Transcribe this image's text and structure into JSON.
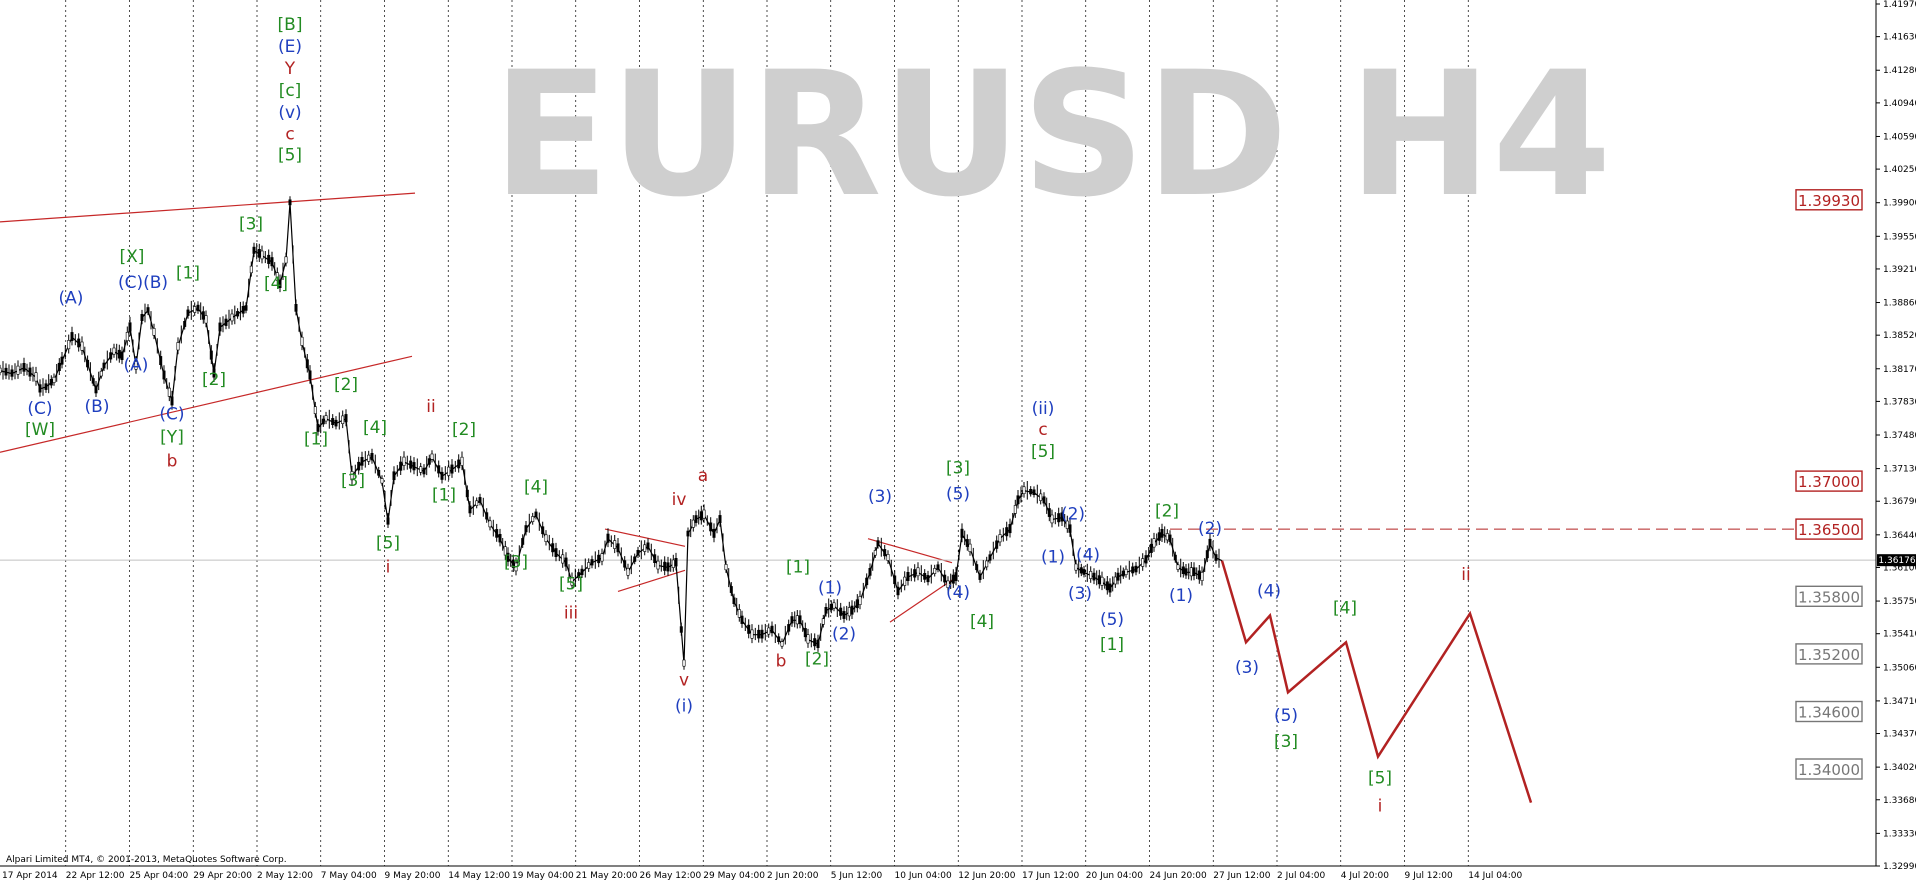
{
  "chart_data": {
    "type": "candlestick",
    "title": "EURUSD H4",
    "copyright": "Alpari Limited MT4, © 2001-2013, MetaQuotes Software Corp.",
    "current_price": 1.36176,
    "ylim": [
      1.3299,
      1.4197
    ],
    "y_ticks": [
      1.4197,
      1.4163,
      1.4128,
      1.4094,
      1.4059,
      1.4025,
      1.399,
      1.3955,
      1.3921,
      1.3886,
      1.3852,
      1.3817,
      1.3783,
      1.3748,
      1.3713,
      1.3679,
      1.3644,
      1.361,
      1.3575,
      1.3541,
      1.3506,
      1.3471,
      1.3437,
      1.3402,
      1.3368,
      1.3333,
      1.3299
    ],
    "x_labels": [
      "17 Apr 2014",
      "22 Apr 12:00",
      "25 Apr 04:00",
      "29 Apr 20:00",
      "2 May 12:00",
      "7 May 04:00",
      "9 May 20:00",
      "14 May 12:00",
      "19 May 04:00",
      "21 May 20:00",
      "26 May 12:00",
      "29 May 04:00",
      "2 Jun 20:00",
      "5 Jun 12:00",
      "10 Jun 04:00",
      "12 Jun 20:00",
      "17 Jun 12:00",
      "20 Jun 04:00",
      "24 Jun 20:00",
      "27 Jun 12:00",
      "2 Jul 04:00",
      "4 Jul 20:00",
      "9 Jul 12:00",
      "14 Jul 04:00"
    ],
    "price_path": [
      {
        "x": 0,
        "y": 1.3815
      },
      {
        "x": 12,
        "y": 1.3812
      },
      {
        "x": 24,
        "y": 1.3818
      },
      {
        "x": 36,
        "y": 1.3808
      },
      {
        "x": 40,
        "y": 1.3796
      },
      {
        "x": 46,
        "y": 1.3798
      },
      {
        "x": 54,
        "y": 1.3805
      },
      {
        "x": 62,
        "y": 1.3825
      },
      {
        "x": 72,
        "y": 1.385
      },
      {
        "x": 82,
        "y": 1.384
      },
      {
        "x": 96,
        "y": 1.3795
      },
      {
        "x": 104,
        "y": 1.382
      },
      {
        "x": 114,
        "y": 1.3835
      },
      {
        "x": 122,
        "y": 1.383
      },
      {
        "x": 130,
        "y": 1.386
      },
      {
        "x": 136,
        "y": 1.382
      },
      {
        "x": 142,
        "y": 1.387
      },
      {
        "x": 148,
        "y": 1.3878
      },
      {
        "x": 154,
        "y": 1.3855
      },
      {
        "x": 164,
        "y": 1.381
      },
      {
        "x": 172,
        "y": 1.3783
      },
      {
        "x": 178,
        "y": 1.384
      },
      {
        "x": 188,
        "y": 1.3875
      },
      {
        "x": 198,
        "y": 1.388
      },
      {
        "x": 206,
        "y": 1.3868
      },
      {
        "x": 214,
        "y": 1.3812
      },
      {
        "x": 220,
        "y": 1.386
      },
      {
        "x": 232,
        "y": 1.387
      },
      {
        "x": 246,
        "y": 1.388
      },
      {
        "x": 254,
        "y": 1.394
      },
      {
        "x": 262,
        "y": 1.3935
      },
      {
        "x": 272,
        "y": 1.3928
      },
      {
        "x": 280,
        "y": 1.3905
      },
      {
        "x": 286,
        "y": 1.393
      },
      {
        "x": 290,
        "y": 1.399
      },
      {
        "x": 296,
        "y": 1.388
      },
      {
        "x": 302,
        "y": 1.3845
      },
      {
        "x": 310,
        "y": 1.381
      },
      {
        "x": 318,
        "y": 1.3755
      },
      {
        "x": 326,
        "y": 1.3765
      },
      {
        "x": 336,
        "y": 1.376
      },
      {
        "x": 346,
        "y": 1.3765
      },
      {
        "x": 352,
        "y": 1.3705
      },
      {
        "x": 362,
        "y": 1.372
      },
      {
        "x": 372,
        "y": 1.3725
      },
      {
        "x": 382,
        "y": 1.37
      },
      {
        "x": 388,
        "y": 1.3658
      },
      {
        "x": 394,
        "y": 1.3705
      },
      {
        "x": 404,
        "y": 1.372
      },
      {
        "x": 414,
        "y": 1.3715
      },
      {
        "x": 424,
        "y": 1.371
      },
      {
        "x": 432,
        "y": 1.3725
      },
      {
        "x": 442,
        "y": 1.3705
      },
      {
        "x": 452,
        "y": 1.3712
      },
      {
        "x": 462,
        "y": 1.372
      },
      {
        "x": 470,
        "y": 1.367
      },
      {
        "x": 480,
        "y": 1.368
      },
      {
        "x": 490,
        "y": 1.3655
      },
      {
        "x": 500,
        "y": 1.364
      },
      {
        "x": 508,
        "y": 1.362
      },
      {
        "x": 516,
        "y": 1.361
      },
      {
        "x": 526,
        "y": 1.365
      },
      {
        "x": 536,
        "y": 1.3665
      },
      {
        "x": 546,
        "y": 1.364
      },
      {
        "x": 556,
        "y": 1.3625
      },
      {
        "x": 566,
        "y": 1.3615
      },
      {
        "x": 572,
        "y": 1.3595
      },
      {
        "x": 582,
        "y": 1.3605
      },
      {
        "x": 592,
        "y": 1.3615
      },
      {
        "x": 602,
        "y": 1.362
      },
      {
        "x": 608,
        "y": 1.364
      },
      {
        "x": 618,
        "y": 1.363
      },
      {
        "x": 628,
        "y": 1.3605
      },
      {
        "x": 638,
        "y": 1.3625
      },
      {
        "x": 648,
        "y": 1.3632
      },
      {
        "x": 658,
        "y": 1.3612
      },
      {
        "x": 668,
        "y": 1.361
      },
      {
        "x": 676,
        "y": 1.3615
      },
      {
        "x": 684,
        "y": 1.351
      },
      {
        "x": 688,
        "y": 1.3645
      },
      {
        "x": 696,
        "y": 1.366
      },
      {
        "x": 704,
        "y": 1.3665
      },
      {
        "x": 714,
        "y": 1.3645
      },
      {
        "x": 720,
        "y": 1.366
      },
      {
        "x": 726,
        "y": 1.361
      },
      {
        "x": 734,
        "y": 1.3575
      },
      {
        "x": 742,
        "y": 1.3555
      },
      {
        "x": 752,
        "y": 1.354
      },
      {
        "x": 762,
        "y": 1.354
      },
      {
        "x": 772,
        "y": 1.3545
      },
      {
        "x": 782,
        "y": 1.353
      },
      {
        "x": 792,
        "y": 1.3555
      },
      {
        "x": 800,
        "y": 1.3555
      },
      {
        "x": 808,
        "y": 1.3535
      },
      {
        "x": 818,
        "y": 1.353
      },
      {
        "x": 826,
        "y": 1.3565
      },
      {
        "x": 834,
        "y": 1.357
      },
      {
        "x": 844,
        "y": 1.356
      },
      {
        "x": 852,
        "y": 1.3565
      },
      {
        "x": 860,
        "y": 1.3575
      },
      {
        "x": 870,
        "y": 1.3605
      },
      {
        "x": 878,
        "y": 1.3635
      },
      {
        "x": 888,
        "y": 1.362
      },
      {
        "x": 898,
        "y": 1.3585
      },
      {
        "x": 908,
        "y": 1.36
      },
      {
        "x": 918,
        "y": 1.3605
      },
      {
        "x": 928,
        "y": 1.3598
      },
      {
        "x": 938,
        "y": 1.361
      },
      {
        "x": 948,
        "y": 1.3592
      },
      {
        "x": 956,
        "y": 1.36
      },
      {
        "x": 962,
        "y": 1.3645
      },
      {
        "x": 970,
        "y": 1.363
      },
      {
        "x": 980,
        "y": 1.36
      },
      {
        "x": 990,
        "y": 1.362
      },
      {
        "x": 1000,
        "y": 1.364
      },
      {
        "x": 1010,
        "y": 1.365
      },
      {
        "x": 1018,
        "y": 1.368
      },
      {
        "x": 1024,
        "y": 1.369
      },
      {
        "x": 1034,
        "y": 1.3688
      },
      {
        "x": 1044,
        "y": 1.368
      },
      {
        "x": 1052,
        "y": 1.366
      },
      {
        "x": 1062,
        "y": 1.3662
      },
      {
        "x": 1070,
        "y": 1.365
      },
      {
        "x": 1076,
        "y": 1.361
      },
      {
        "x": 1084,
        "y": 1.3605
      },
      {
        "x": 1094,
        "y": 1.36
      },
      {
        "x": 1102,
        "y": 1.3595
      },
      {
        "x": 1110,
        "y": 1.3588
      },
      {
        "x": 1118,
        "y": 1.36
      },
      {
        "x": 1126,
        "y": 1.3605
      },
      {
        "x": 1136,
        "y": 1.3608
      },
      {
        "x": 1146,
        "y": 1.3618
      },
      {
        "x": 1154,
        "y": 1.3635
      },
      {
        "x": 1162,
        "y": 1.3645
      },
      {
        "x": 1170,
        "y": 1.364
      },
      {
        "x": 1178,
        "y": 1.361
      },
      {
        "x": 1186,
        "y": 1.3605
      },
      {
        "x": 1194,
        "y": 1.3605
      },
      {
        "x": 1202,
        "y": 1.36
      },
      {
        "x": 1210,
        "y": 1.3635
      },
      {
        "x": 1216,
        "y": 1.362
      },
      {
        "x": 1222,
        "y": 1.3617
      }
    ],
    "forecast_path": [
      {
        "x": 1222,
        "y": 1.3617
      },
      {
        "x": 1246,
        "y": 1.3532
      },
      {
        "x": 1270,
        "y": 1.356
      },
      {
        "x": 1288,
        "y": 1.348
      },
      {
        "x": 1346,
        "y": 1.3532
      },
      {
        "x": 1378,
        "y": 1.3413
      },
      {
        "x": 1470,
        "y": 1.3562
      },
      {
        "x": 1531,
        "y": 1.3365
      }
    ],
    "trendlines": [
      {
        "name": "channel-upper",
        "from": {
          "x": 0,
          "y": 1.397
        },
        "to": {
          "x": 415,
          "y": 1.4
        }
      },
      {
        "name": "channel-lower",
        "from": {
          "x": 0,
          "y": 1.373
        },
        "to": {
          "x": 412,
          "y": 1.383
        }
      },
      {
        "name": "triangle-1-upper",
        "from": {
          "x": 605,
          "y": 1.365
        },
        "to": {
          "x": 685,
          "y": 1.3632
        }
      },
      {
        "name": "triangle-1-lower",
        "from": {
          "x": 618,
          "y": 1.3585
        },
        "to": {
          "x": 685,
          "y": 1.3607
        }
      },
      {
        "name": "triangle-2-upper",
        "from": {
          "x": 868,
          "y": 1.364
        },
        "to": {
          "x": 952,
          "y": 1.3615
        }
      },
      {
        "name": "triangle-2-lower",
        "from": {
          "x": 890,
          "y": 1.3553
        },
        "to": {
          "x": 952,
          "y": 1.3597
        }
      }
    ],
    "resistance_line": {
      "y": 1.365,
      "from_x": 1170
    },
    "price_levels": [
      {
        "value": 1.3993,
        "label": "1.39930",
        "color": "#b22222"
      },
      {
        "value": 1.37,
        "label": "1.37000",
        "color": "#b22222"
      },
      {
        "value": 1.365,
        "label": "1.36500",
        "color": "#b22222"
      },
      {
        "value": 1.358,
        "label": "1.35800",
        "color": "#777777"
      },
      {
        "value": 1.352,
        "label": "1.35200",
        "color": "#777777"
      },
      {
        "value": 1.346,
        "label": "1.34600",
        "color": "#777777"
      },
      {
        "value": 1.34,
        "label": "1.34000",
        "color": "#777777"
      }
    ],
    "wave_labels": [
      {
        "text": "[B]",
        "x": 290,
        "y": 1.417,
        "color": "#228b22"
      },
      {
        "text": "(E)",
        "x": 290,
        "y": 1.4147,
        "color": "#1f3fbf"
      },
      {
        "text": "Y",
        "x": 290,
        "y": 1.4124,
        "color": "#b22222"
      },
      {
        "text": "[c]",
        "x": 290,
        "y": 1.4101,
        "color": "#228b22"
      },
      {
        "text": "(v)",
        "x": 290,
        "y": 1.4078,
        "color": "#1f3fbf"
      },
      {
        "text": "c",
        "x": 290,
        "y": 1.4056,
        "color": "#b22222"
      },
      {
        "text": "[5]",
        "x": 290,
        "y": 1.4034,
        "color": "#228b22"
      },
      {
        "text": "[3]",
        "x": 251,
        "y": 1.3962,
        "color": "#228b22"
      },
      {
        "text": "[4]",
        "x": 276,
        "y": 1.39,
        "color": "#228b22"
      },
      {
        "text": "[X]",
        "x": 132,
        "y": 1.3928,
        "color": "#228b22"
      },
      {
        "text": "(C)(B)",
        "x": 143,
        "y": 1.3901,
        "color": "#1f3fbf"
      },
      {
        "text": "[1]",
        "x": 188,
        "y": 1.3911,
        "color": "#228b22"
      },
      {
        "text": "(A)",
        "x": 71,
        "y": 1.3885,
        "color": "#1f3fbf"
      },
      {
        "text": "(A)",
        "x": 136,
        "y": 1.3815,
        "color": "#1f3fbf"
      },
      {
        "text": "[2]",
        "x": 214,
        "y": 1.38,
        "color": "#228b22"
      },
      {
        "text": "(C)",
        "x": 40,
        "y": 1.377,
        "color": "#1f3fbf"
      },
      {
        "text": "(B)",
        "x": 97,
        "y": 1.3772,
        "color": "#1f3fbf"
      },
      {
        "text": "(C)",
        "x": 172,
        "y": 1.3764,
        "color": "#1f3fbf"
      },
      {
        "text": "[W]",
        "x": 40,
        "y": 1.3748,
        "color": "#228b22"
      },
      {
        "text": "[Y]",
        "x": 172,
        "y": 1.374,
        "color": "#228b22"
      },
      {
        "text": "b",
        "x": 172,
        "y": 1.3715,
        "color": "#b22222"
      },
      {
        "text": "[2]",
        "x": 346,
        "y": 1.3795,
        "color": "#228b22"
      },
      {
        "text": "[1]",
        "x": 316,
        "y": 1.3738,
        "color": "#228b22"
      },
      {
        "text": "[4]",
        "x": 375,
        "y": 1.375,
        "color": "#228b22"
      },
      {
        "text": "[3]",
        "x": 353,
        "y": 1.3695,
        "color": "#228b22"
      },
      {
        "text": "[5]",
        "x": 388,
        "y": 1.363,
        "color": "#228b22"
      },
      {
        "text": "i",
        "x": 388,
        "y": 1.3605,
        "color": "#b22222"
      },
      {
        "text": "ii",
        "x": 431,
        "y": 1.3772,
        "color": "#b22222"
      },
      {
        "text": "[2]",
        "x": 464,
        "y": 1.3748,
        "color": "#228b22"
      },
      {
        "text": "[1]",
        "x": 444,
        "y": 1.368,
        "color": "#228b22"
      },
      {
        "text": "[4]",
        "x": 536,
        "y": 1.3688,
        "color": "#228b22"
      },
      {
        "text": "[3]",
        "x": 516,
        "y": 1.361,
        "color": "#228b22"
      },
      {
        "text": "[5]",
        "x": 571,
        "y": 1.3587,
        "color": "#228b22"
      },
      {
        "text": "iii",
        "x": 571,
        "y": 1.3557,
        "color": "#b22222"
      },
      {
        "text": "iv",
        "x": 679,
        "y": 1.3675,
        "color": "#b22222"
      },
      {
        "text": "a",
        "x": 703,
        "y": 1.37,
        "color": "#b22222"
      },
      {
        "text": "v",
        "x": 684,
        "y": 1.3487,
        "color": "#b22222"
      },
      {
        "text": "(i)",
        "x": 684,
        "y": 1.346,
        "color": "#1f3fbf"
      },
      {
        "text": "[1]",
        "x": 798,
        "y": 1.3605,
        "color": "#228b22"
      },
      {
        "text": "(1)",
        "x": 830,
        "y": 1.3583,
        "color": "#1f3fbf"
      },
      {
        "text": "(2)",
        "x": 844,
        "y": 1.3535,
        "color": "#1f3fbf"
      },
      {
        "text": "b",
        "x": 781,
        "y": 1.3507,
        "color": "#b22222"
      },
      {
        "text": "[2]",
        "x": 817,
        "y": 1.3509,
        "color": "#228b22"
      },
      {
        "text": "(3)",
        "x": 880,
        "y": 1.3678,
        "color": "#1f3fbf"
      },
      {
        "text": "(5)",
        "x": 958,
        "y": 1.3681,
        "color": "#1f3fbf"
      },
      {
        "text": "[3]",
        "x": 958,
        "y": 1.3708,
        "color": "#228b22"
      },
      {
        "text": "(4)",
        "x": 958,
        "y": 1.3578,
        "color": "#1f3fbf"
      },
      {
        "text": "[4]",
        "x": 982,
        "y": 1.3548,
        "color": "#228b22"
      },
      {
        "text": "(ii)",
        "x": 1043,
        "y": 1.377,
        "color": "#1f3fbf"
      },
      {
        "text": "c",
        "x": 1043,
        "y": 1.3748,
        "color": "#b22222"
      },
      {
        "text": "[5]",
        "x": 1043,
        "y": 1.3725,
        "color": "#228b22"
      },
      {
        "text": "(2)",
        "x": 1073,
        "y": 1.366,
        "color": "#1f3fbf"
      },
      {
        "text": "(1)",
        "x": 1053,
        "y": 1.3615,
        "color": "#1f3fbf"
      },
      {
        "text": "(4)",
        "x": 1088,
        "y": 1.3617,
        "color": "#1f3fbf"
      },
      {
        "text": "(3)",
        "x": 1080,
        "y": 1.3577,
        "color": "#1f3fbf"
      },
      {
        "text": "(5)",
        "x": 1112,
        "y": 1.355,
        "color": "#1f3fbf"
      },
      {
        "text": "[1]",
        "x": 1112,
        "y": 1.3524,
        "color": "#228b22"
      },
      {
        "text": "[2]",
        "x": 1167,
        "y": 1.3663,
        "color": "#228b22"
      },
      {
        "text": "(2)",
        "x": 1210,
        "y": 1.3645,
        "color": "#1f3fbf"
      },
      {
        "text": "(1)",
        "x": 1181,
        "y": 1.3575,
        "color": "#1f3fbf"
      },
      {
        "text": "(3)",
        "x": 1247,
        "y": 1.35,
        "color": "#1f3fbf"
      },
      {
        "text": "(4)",
        "x": 1269,
        "y": 1.358,
        "color": "#1f3fbf"
      },
      {
        "text": "[4]",
        "x": 1345,
        "y": 1.3562,
        "color": "#228b22"
      },
      {
        "text": "(5)",
        "x": 1286,
        "y": 1.345,
        "color": "#1f3fbf"
      },
      {
        "text": "[3]",
        "x": 1286,
        "y": 1.3423,
        "color": "#228b22"
      },
      {
        "text": "ii",
        "x": 1466,
        "y": 1.3597,
        "color": "#b22222"
      },
      {
        "text": "[5]",
        "x": 1380,
        "y": 1.3385,
        "color": "#228b22"
      },
      {
        "text": "i",
        "x": 1380,
        "y": 1.3356,
        "color": "#b22222"
      }
    ]
  }
}
